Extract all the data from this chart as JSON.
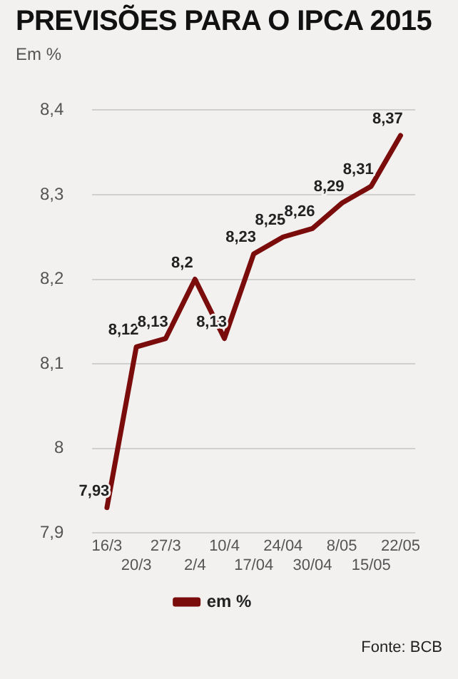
{
  "chart_data": {
    "type": "line",
    "title": "PREVISÕES PARA O IPCA 2015",
    "ylabel": "Em %",
    "categories": [
      "16/3",
      "20/3",
      "27/3",
      "2/4",
      "10/4",
      "17/04",
      "24/04",
      "30/04",
      "8/05",
      "15/05",
      "22/05"
    ],
    "series": [
      {
        "name": "em %",
        "color": "#7b0c0c",
        "values": [
          7.93,
          8.12,
          8.13,
          8.2,
          8.13,
          8.23,
          8.25,
          8.26,
          8.29,
          8.31,
          8.37
        ],
        "value_labels": [
          "7,93",
          "8,12",
          "8,13",
          "8,2",
          "8,13",
          "8,23",
          "8,25",
          "8,26",
          "8,29",
          "8,31",
          "8,37"
        ]
      }
    ],
    "ylim": [
      7.9,
      8.4
    ],
    "yticks": [
      {
        "value": 7.9,
        "label": "7,9"
      },
      8,
      {
        "value": 8.1,
        "label": "8,1"
      },
      {
        "value": 8.2,
        "label": "8,2"
      },
      {
        "value": 8.3,
        "label": "8,3"
      },
      {
        "value": 8.4,
        "label": "8,4"
      }
    ],
    "grid": "y",
    "legend": "bottom",
    "marker": "none",
    "line_style": "solid",
    "annotations": [
      "Fonte: BCB"
    ]
  }
}
